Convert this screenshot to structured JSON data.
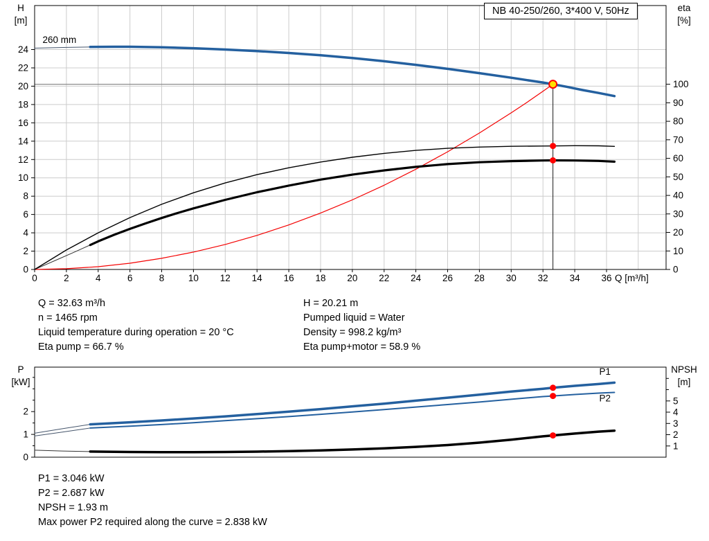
{
  "header": {
    "title": "NB 40-250/260, 3*400 V, 50Hz"
  },
  "results_top": {
    "left": [
      "Q = 32.63 m³/h",
      "n = 1465 rpm",
      "Liquid temperature during operation = 20 °C",
      "Eta pump = 66.7 %"
    ],
    "right": [
      "H = 20.21 m",
      "Pumped liquid = Water",
      "Density = 998.2 kg/m³",
      "Eta pump+motor = 58.9 %"
    ]
  },
  "results_bottom": [
    "P1 = 3.046 kW",
    "P2 = 2.687 kW",
    "NPSH = 1.93 m",
    "Max power P2 required along the curve = 2.838 kW"
  ],
  "colors": {
    "curve_blue": "#24609f",
    "curve_black": "#000000",
    "system_red": "#f40000",
    "duty_yellow": "#ffe000",
    "duty_ring_red": "#ff0000",
    "grid_gray": "#cccccc",
    "guide_gray": "#8c8c8c"
  },
  "chart_data": [
    {
      "type": "line",
      "title": "NB 40-250/260, 3*400 V, 50Hz",
      "grid": true,
      "grid_color": "#cccccc",
      "duty_point": {
        "Q_m3h": 32.63,
        "H_m": 20.21,
        "eta_pump_pct": 66.7,
        "eta_pump_motor_pct": 58.9,
        "impeller": "260 mm",
        "speed_rpm": 1465
      },
      "x_axis": {
        "label": "Q [m³/h]",
        "min": 0,
        "max": 39.75,
        "ticks": [
          0,
          2,
          4,
          6,
          8,
          10,
          12,
          14,
          16,
          18,
          20,
          22,
          24,
          26,
          28,
          30,
          32,
          34,
          36
        ],
        "grid_ticks": [
          2,
          4,
          6,
          8,
          10,
          12,
          14,
          16,
          18,
          20,
          22,
          24,
          26,
          28,
          30,
          32,
          34,
          36,
          38
        ]
      },
      "y_left": {
        "label": "H [m]",
        "title_lines": [
          "H",
          "[m]"
        ],
        "min": 0,
        "max": 28.8,
        "ticks": [
          0,
          2,
          4,
          6,
          8,
          10,
          12,
          14,
          16,
          18,
          20,
          22,
          24
        ],
        "grid_ticks": [
          2,
          4,
          6,
          8,
          10,
          12,
          14,
          16,
          18,
          20,
          22,
          24
        ]
      },
      "y_right": {
        "label": "eta [%]",
        "title_lines": [
          "eta",
          "[%]"
        ],
        "min": 0,
        "max": 142.5,
        "ticks": [
          0,
          10,
          20,
          30,
          40,
          50,
          60,
          70,
          80,
          90,
          100
        ]
      },
      "guides": [
        {
          "name": "duty-head-guide",
          "orient": "h",
          "at": 20.21,
          "axis": "left",
          "from": 0,
          "to": 32.63,
          "color": "#8c8c8c",
          "width": 1.2
        },
        {
          "name": "duty-flow-guide",
          "orient": "v",
          "at": 32.63,
          "axis": "left",
          "from": 0,
          "to": 20.21,
          "color": "#1a1a1a",
          "width": 1
        }
      ],
      "series": [
        {
          "name": "qh-curve-lead",
          "axis": "left",
          "color": "#44546a",
          "width": 1,
          "points": [
            [
              0,
              24.15
            ],
            [
              1.8,
              24.23
            ],
            [
              3.5,
              24.28
            ]
          ]
        },
        {
          "name": "system-curve",
          "axis": "left",
          "color": "#f40000",
          "width": 1.2,
          "points": [
            [
              0,
              0
            ],
            [
              2,
              0.08
            ],
            [
              4,
              0.3
            ],
            [
              6,
              0.68
            ],
            [
              8,
              1.22
            ],
            [
              10,
              1.9
            ],
            [
              12,
              2.73
            ],
            [
              14,
              3.72
            ],
            [
              16,
              4.86
            ],
            [
              18,
              6.15
            ],
            [
              20,
              7.6
            ],
            [
              22,
              9.19
            ],
            [
              24,
              10.94
            ],
            [
              26,
              12.84
            ],
            [
              28,
              14.89
            ],
            [
              30,
              17.09
            ],
            [
              31,
              18.24
            ],
            [
              32,
              19.45
            ],
            [
              32.63,
              20.21
            ]
          ]
        },
        {
          "name": "eta-pump-motor-lead",
          "axis": "right",
          "color": "#333333",
          "width": 1,
          "points": [
            [
              0,
              0
            ],
            [
              1.5,
              5.6
            ],
            [
              2.5,
              9.4
            ],
            [
              3.5,
              13.2
            ]
          ]
        },
        {
          "name": "eta-pump-curve",
          "axis": "right",
          "color": "#000000",
          "width": 1.4,
          "points": [
            [
              0,
              0
            ],
            [
              2,
              10.5
            ],
            [
              4,
              19.8
            ],
            [
              6,
              28
            ],
            [
              8,
              35.2
            ],
            [
              10,
              41.4
            ],
            [
              12,
              46.7
            ],
            [
              14,
              51.2
            ],
            [
              16,
              54.9
            ],
            [
              18,
              58
            ],
            [
              20,
              60.6
            ],
            [
              22,
              62.7
            ],
            [
              24,
              64.3
            ],
            [
              26,
              65.4
            ],
            [
              28,
              66.1
            ],
            [
              30,
              66.5
            ],
            [
              32,
              66.65
            ],
            [
              32.63,
              66.7
            ],
            [
              34,
              66.85
            ],
            [
              35.5,
              66.75
            ],
            [
              36.5,
              66.45
            ]
          ]
        },
        {
          "name": "eta-pump-motor-curve",
          "axis": "right",
          "color": "#000000",
          "width": 3.2,
          "points": [
            [
              3.5,
              13.2
            ],
            [
              4,
              15.2
            ],
            [
              5,
              18.7
            ],
            [
              6,
              21.9
            ],
            [
              7,
              24.9
            ],
            [
              8,
              27.8
            ],
            [
              9,
              30.5
            ],
            [
              10,
              33
            ],
            [
              12,
              37.6
            ],
            [
              14,
              41.7
            ],
            [
              16,
              45.3
            ],
            [
              18,
              48.5
            ],
            [
              20,
              51.2
            ],
            [
              22,
              53.5
            ],
            [
              24,
              55.4
            ],
            [
              26,
              56.9
            ],
            [
              28,
              57.9
            ],
            [
              30,
              58.5
            ],
            [
              32,
              58.85
            ],
            [
              32.63,
              58.9
            ],
            [
              34,
              58.85
            ],
            [
              35.5,
              58.6
            ],
            [
              36.5,
              58.2
            ]
          ]
        },
        {
          "name": "qh-curve-260mm",
          "axis": "left",
          "color": "#24609f",
          "width": 3.5,
          "points": [
            [
              3.5,
              24.28
            ],
            [
              5,
              24.3
            ],
            [
              6,
              24.3
            ],
            [
              8,
              24.24
            ],
            [
              10,
              24.14
            ],
            [
              12,
              24.0
            ],
            [
              14,
              23.83
            ],
            [
              16,
              23.62
            ],
            [
              18,
              23.37
            ],
            [
              20,
              23.07
            ],
            [
              22,
              22.72
            ],
            [
              24,
              22.33
            ],
            [
              26,
              21.89
            ],
            [
              28,
              21.42
            ],
            [
              30,
              20.92
            ],
            [
              31,
              20.66
            ],
            [
              32,
              20.4
            ],
            [
              32.63,
              20.21
            ],
            [
              33.5,
              19.93
            ],
            [
              34.5,
              19.58
            ],
            [
              35.5,
              19.26
            ],
            [
              36.5,
              18.92
            ]
          ]
        }
      ],
      "markers": [
        {
          "name": "duty-point-marker",
          "x": 32.63,
          "y": 20.21,
          "axis": "left",
          "r": 5.5,
          "fill": "#ffe000",
          "stroke": "#ff0000",
          "stroke_width": 2
        },
        {
          "name": "duty-eta-pump-marker",
          "x": 32.63,
          "y": 66.7,
          "axis": "right",
          "r": 4.5,
          "fill": "#ff0000",
          "stroke": "none",
          "stroke_width": 0
        },
        {
          "name": "duty-eta-pump-motor-marker",
          "x": 32.63,
          "y": 58.9,
          "axis": "right",
          "r": 4.5,
          "fill": "#ff0000",
          "stroke": "none",
          "stroke_width": 0
        }
      ],
      "annotations": [
        {
          "name": "impeller-label",
          "text": "260 mm",
          "x": 0.5,
          "y": 25.0,
          "axis": "left",
          "anchor": "start",
          "size": 14.5,
          "color": "#000000"
        }
      ]
    },
    {
      "type": "line",
      "title": "Power and NPSH curves",
      "grid": false,
      "grid_color": "#cccccc",
      "duty_point": {
        "Q_m3h": 32.63,
        "P1_kW": 3.046,
        "P2_kW": 2.687,
        "NPSH_m": 1.93,
        "max_P2_kW": 2.838
      },
      "x_axis": {
        "label": "",
        "min": 0,
        "max": 39.75,
        "ticks": []
      },
      "y_left": {
        "label": "P [kW]",
        "title_lines": [
          "P",
          "[kW]"
        ],
        "min": 0,
        "max": 3.95,
        "ticks": [
          0,
          1,
          2
        ],
        "minor_ticks": [
          0.5,
          1.5,
          2.5,
          3,
          3.5
        ]
      },
      "y_right": {
        "label": "NPSH [m]",
        "title_lines": [
          "NPSH",
          "[m]"
        ],
        "min": 0,
        "max": 8,
        "ticks": [
          1,
          2,
          3,
          4,
          5
        ],
        "minor_ticks": [
          6,
          7
        ]
      },
      "series": [
        {
          "name": "p1-curve-lead",
          "axis": "left",
          "color": "#44546a",
          "width": 1,
          "points": [
            [
              0,
              1.05
            ],
            [
              1.75,
              1.25
            ],
            [
              3.5,
              1.44
            ]
          ]
        },
        {
          "name": "p2-curve-lead",
          "axis": "left",
          "color": "#44546a",
          "width": 1,
          "points": [
            [
              0,
              0.93
            ],
            [
              1.75,
              1.1
            ],
            [
              3.5,
              1.28
            ]
          ]
        },
        {
          "name": "npsh-curve-lead",
          "axis": "right",
          "color": "#333333",
          "width": 1,
          "points": [
            [
              0,
              0.62
            ],
            [
              1.75,
              0.55
            ],
            [
              3.5,
              0.5
            ]
          ]
        },
        {
          "name": "npsh-curve",
          "axis": "right",
          "color": "#000000",
          "width": 3.5,
          "points": [
            [
              3.5,
              0.5
            ],
            [
              6,
              0.46
            ],
            [
              8,
              0.44
            ],
            [
              10,
              0.44
            ],
            [
              12,
              0.46
            ],
            [
              14,
              0.49
            ],
            [
              16,
              0.54
            ],
            [
              18,
              0.6
            ],
            [
              20,
              0.68
            ],
            [
              22,
              0.79
            ],
            [
              24,
              0.92
            ],
            [
              26,
              1.08
            ],
            [
              28,
              1.29
            ],
            [
              30,
              1.56
            ],
            [
              32,
              1.85
            ],
            [
              32.63,
              1.93
            ],
            [
              34,
              2.1
            ],
            [
              35.5,
              2.27
            ],
            [
              36.5,
              2.36
            ]
          ]
        },
        {
          "name": "p2-curve",
          "axis": "left",
          "color": "#24609f",
          "width": 2,
          "points": [
            [
              3.5,
              1.28
            ],
            [
              6,
              1.36
            ],
            [
              8,
              1.43
            ],
            [
              10,
              1.51
            ],
            [
              12,
              1.6
            ],
            [
              14,
              1.69
            ],
            [
              16,
              1.78
            ],
            [
              18,
              1.88
            ],
            [
              20,
              1.98
            ],
            [
              22,
              2.09
            ],
            [
              24,
              2.2
            ],
            [
              26,
              2.31
            ],
            [
              28,
              2.42
            ],
            [
              30,
              2.54
            ],
            [
              32,
              2.66
            ],
            [
              32.63,
              2.687
            ],
            [
              34,
              2.75
            ],
            [
              35.5,
              2.81
            ],
            [
              36.5,
              2.84
            ]
          ]
        },
        {
          "name": "p1-curve",
          "axis": "left",
          "color": "#24609f",
          "width": 3.5,
          "points": [
            [
              3.5,
              1.44
            ],
            [
              6,
              1.53
            ],
            [
              8,
              1.61
            ],
            [
              10,
              1.7
            ],
            [
              12,
              1.79
            ],
            [
              14,
              1.89
            ],
            [
              16,
              2.0
            ],
            [
              18,
              2.11
            ],
            [
              20,
              2.23
            ],
            [
              22,
              2.35
            ],
            [
              24,
              2.48
            ],
            [
              26,
              2.61
            ],
            [
              28,
              2.74
            ],
            [
              30,
              2.88
            ],
            [
              32,
              3.0
            ],
            [
              32.63,
              3.046
            ],
            [
              34,
              3.13
            ],
            [
              35.5,
              3.21
            ],
            [
              36.5,
              3.27
            ]
          ]
        }
      ],
      "markers": [
        {
          "name": "duty-p1-marker",
          "x": 32.63,
          "y": 3.046,
          "axis": "left",
          "r": 4.5,
          "fill": "#ff0000",
          "stroke": "none",
          "stroke_width": 0
        },
        {
          "name": "duty-p2-marker",
          "x": 32.63,
          "y": 2.687,
          "axis": "left",
          "r": 4.5,
          "fill": "#ff0000",
          "stroke": "none",
          "stroke_width": 0
        },
        {
          "name": "duty-npsh-marker",
          "x": 32.63,
          "y": 1.93,
          "axis": "right",
          "r": 4.5,
          "fill": "#ff0000",
          "stroke": "none",
          "stroke_width": 0
        }
      ],
      "annotations": [
        {
          "name": "p1-label",
          "text": "P1",
          "x": 35.9,
          "y": 3.72,
          "axis": "left",
          "anchor": "middle",
          "size": 14.5,
          "color": "#24609f"
        },
        {
          "name": "p2-label",
          "text": "P2",
          "x": 35.9,
          "y": 2.55,
          "axis": "left",
          "anchor": "middle",
          "size": 14.5,
          "color": "#24609f"
        }
      ]
    }
  ]
}
